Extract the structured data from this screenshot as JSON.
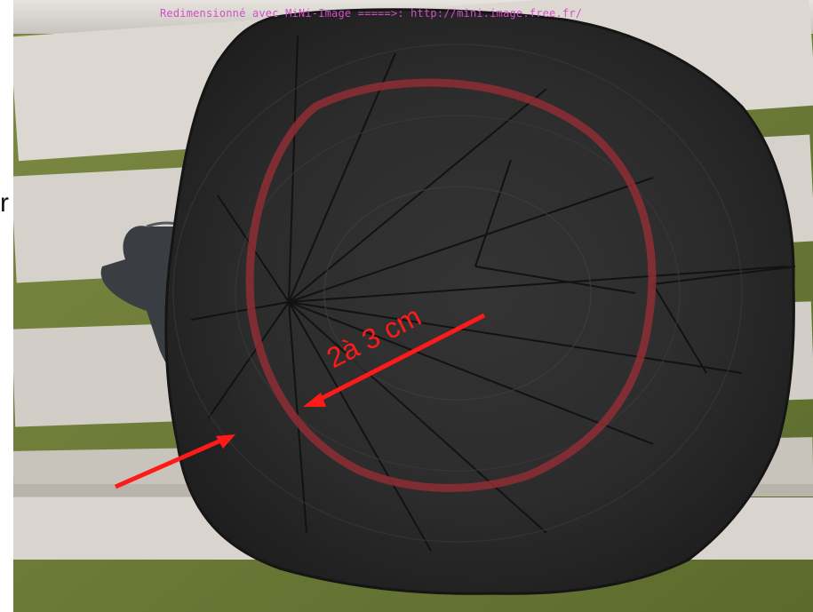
{
  "watermark": {
    "text": "Redimensionné avec MiNi-Image =====>: http://mini.image.free.fr/"
  },
  "stray_letter": "r",
  "annotation": {
    "label": "2à 3 cm"
  },
  "colors": {
    "annotation": "#ff1a1a",
    "ring": "#8e2e35",
    "wood_dark": "#2b2b2b",
    "bench_plank": "#d9d6d0",
    "grass": "#6b7a3a",
    "glove": "#3a3d42"
  }
}
